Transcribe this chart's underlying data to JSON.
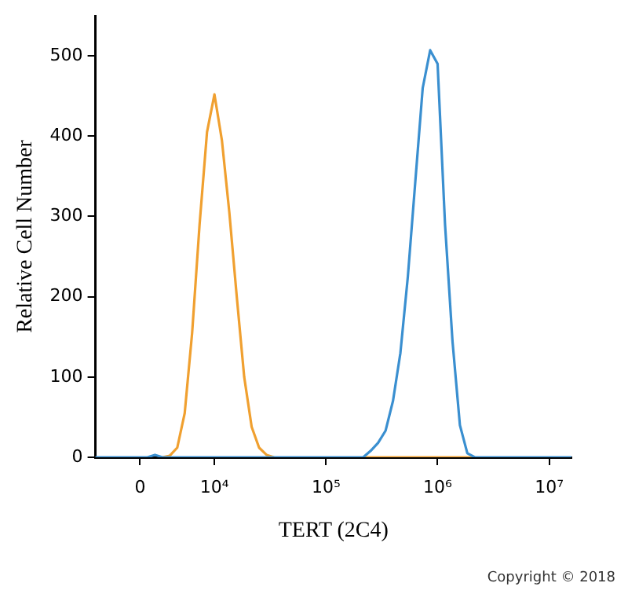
{
  "chart_data": {
    "type": "line",
    "xlabel": "TERT (2C4)",
    "ylabel": "Relative Cell Number",
    "categories": [
      null,
      null,
      null,
      null,
      null,
      null,
      "0",
      null,
      null,
      null,
      null,
      null,
      null,
      null,
      null,
      null,
      "10⁴",
      null,
      null,
      null,
      null,
      null,
      null,
      null,
      null,
      null,
      null,
      null,
      null,
      null,
      null,
      "10⁵",
      null,
      null,
      null,
      null,
      null,
      null,
      null,
      null,
      null,
      null,
      null,
      null,
      null,
      null,
      "10⁶",
      null,
      null,
      null,
      null,
      null,
      null,
      null,
      null,
      null,
      null,
      null,
      null,
      null,
      null,
      "10⁷",
      null,
      null,
      null
    ],
    "ylim": [
      0,
      550
    ],
    "yticks": [
      0,
      100,
      200,
      300,
      400,
      500
    ],
    "grid": false,
    "legend": false,
    "marker": "none",
    "line_style": "solid",
    "series": [
      {
        "color": "#f0a030",
        "values": [
          null,
          null,
          null,
          null,
          null,
          null,
          null,
          null,
          null,
          0,
          2,
          12,
          55,
          155,
          290,
          405,
          452,
          395,
          305,
          200,
          100,
          38,
          12,
          3,
          0,
          null,
          null,
          null,
          null,
          null,
          null,
          null,
          null,
          null,
          null,
          null,
          0,
          0,
          0,
          0,
          0,
          0,
          0,
          0,
          0,
          0,
          0,
          0,
          0,
          0,
          0,
          0,
          null,
          null,
          null,
          null,
          null,
          null,
          null,
          null,
          null,
          null,
          null,
          null,
          null
        ]
      },
      {
        "color": "#3a8fd0",
        "values": [
          0,
          0,
          0,
          0,
          0,
          0,
          0,
          0,
          3,
          0,
          0,
          0,
          0,
          0,
          0,
          0,
          0,
          0,
          0,
          0,
          0,
          0,
          0,
          0,
          0,
          0,
          0,
          0,
          0,
          0,
          0,
          0,
          0,
          0,
          0,
          0,
          0,
          8,
          18,
          33,
          70,
          130,
          225,
          343,
          460,
          507,
          490,
          290,
          145,
          40,
          5,
          0,
          0,
          0,
          0,
          0,
          0,
          0,
          0,
          0,
          0,
          0,
          0,
          0,
          0
        ]
      }
    ],
    "annotations": [
      "Copyright © 2018"
    ]
  }
}
